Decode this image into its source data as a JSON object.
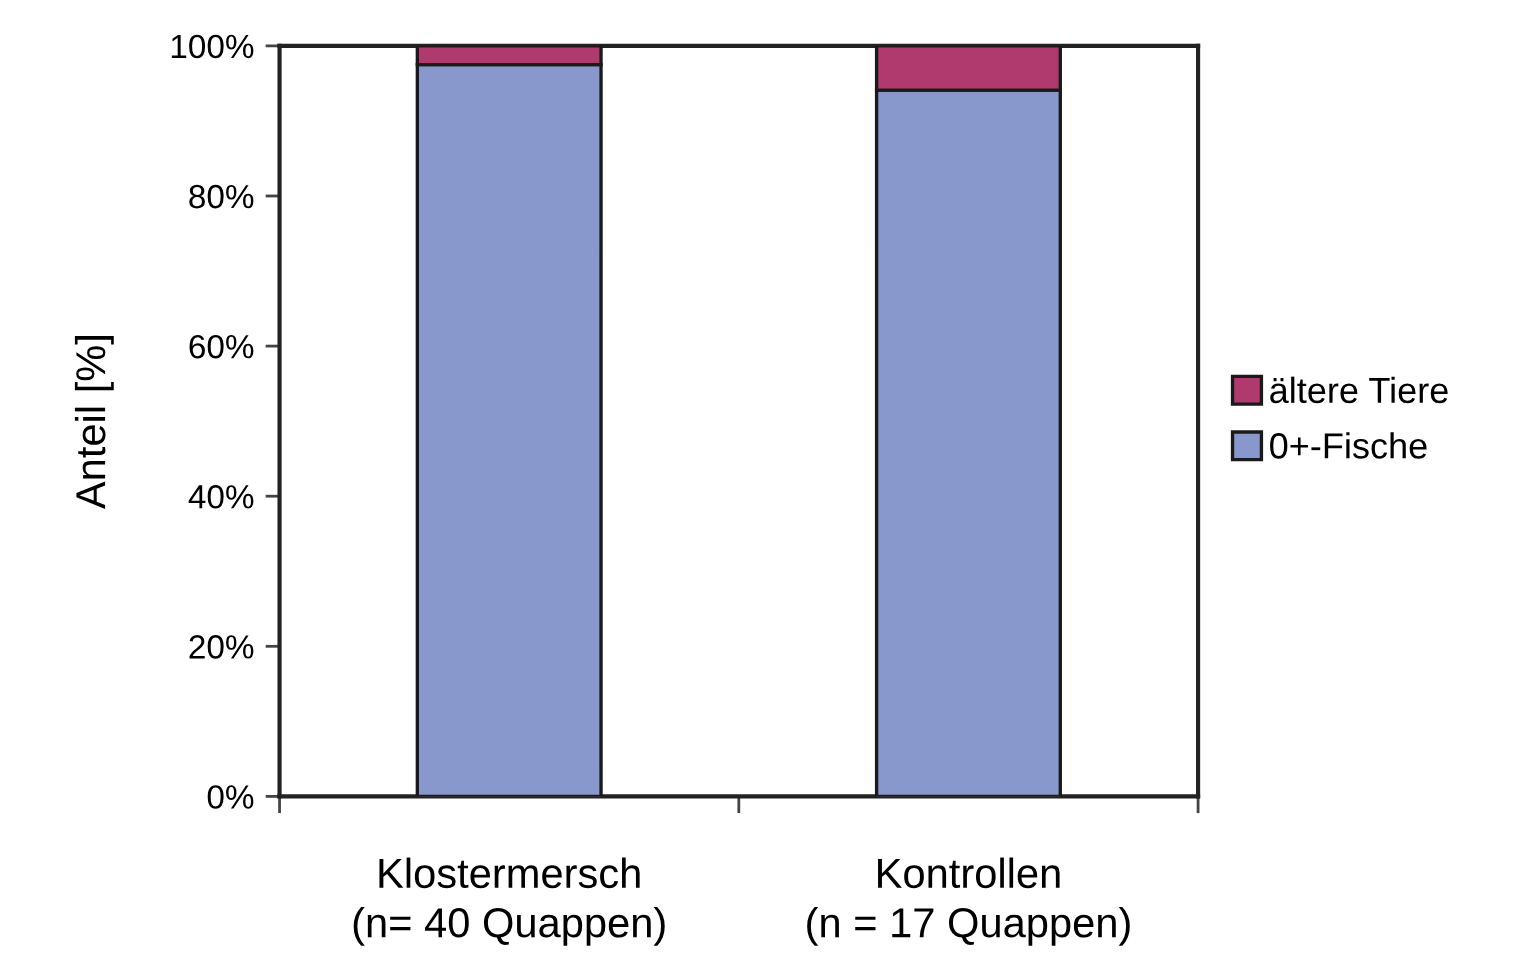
{
  "chart_data": {
    "type": "bar",
    "stacked": true,
    "ylabel": "Anteil [%]",
    "categories": [
      "Klostermersch\n(n= 40 Quappen)",
      "Kontrollen\n(n = 17 Quappen)"
    ],
    "series": [
      {
        "name": "0+-Fische",
        "color": "#8898cc",
        "values": [
          97.5,
          94.1
        ]
      },
      {
        "name": "ältere Tiere",
        "color": "#b03a6e",
        "values": [
          2.5,
          5.9
        ]
      }
    ],
    "ylim": [
      0,
      100
    ],
    "yticks": [
      {
        "value": 0,
        "label": "0%"
      },
      {
        "value": 20,
        "label": "20%"
      },
      {
        "value": 40,
        "label": "40%"
      },
      {
        "value": 60,
        "label": "60%"
      },
      {
        "value": 80,
        "label": "80%"
      },
      {
        "value": 100,
        "label": "100%"
      }
    ],
    "grid": false,
    "legend": "right"
  }
}
